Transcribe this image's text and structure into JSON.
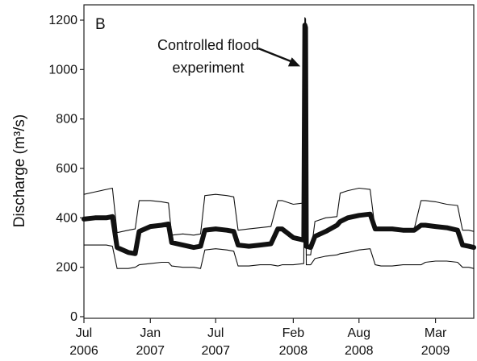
{
  "chart_data": {
    "type": "line",
    "panel_label": "B",
    "ylabel": "Discharge (m³/s)",
    "ylim": [
      0,
      1250
    ],
    "yticks": [
      0,
      200,
      400,
      600,
      800,
      1000,
      1200
    ],
    "xlim": [
      "2006-07-01",
      "2009-06-15"
    ],
    "xticks": [
      {
        "date": "2006-07-01",
        "line1": "Jul",
        "line2": "2006"
      },
      {
        "date": "2007-01-01",
        "line1": "Jan",
        "line2": "2007"
      },
      {
        "date": "2007-07-01",
        "line1": "Jul",
        "line2": "2007"
      },
      {
        "date": "2008-02-01",
        "line1": "Feb",
        "line2": "2008"
      },
      {
        "date": "2008-08-01",
        "line1": "Aug",
        "line2": "2008"
      },
      {
        "date": "2009-03-01",
        "line1": "Mar",
        "line2": "2009"
      }
    ],
    "grid": false,
    "annotation": {
      "lines": [
        "Controlled flood",
        "experiment"
      ],
      "date": "2008-03-05",
      "value": 1000
    },
    "series": [
      {
        "role": "daily maximum",
        "x": [
          "2006-07-01",
          "2006-08-01",
          "2006-09-01",
          "2006-09-18",
          "2006-10-01",
          "2006-11-01",
          "2006-11-20",
          "2006-12-01",
          "2007-01-01",
          "2007-02-01",
          "2007-02-20",
          "2007-03-01",
          "2007-04-01",
          "2007-05-01",
          "2007-05-20",
          "2007-06-01",
          "2007-07-01",
          "2007-08-01",
          "2007-08-20",
          "2007-09-01",
          "2007-10-01",
          "2007-11-01",
          "2007-12-01",
          "2007-12-20",
          "2008-01-01",
          "2008-02-01",
          "2008-03-01",
          "2008-03-04",
          "2008-03-06",
          "2008-03-08",
          "2008-03-20",
          "2008-04-01",
          "2008-05-01",
          "2008-06-01",
          "2008-06-10",
          "2008-07-01",
          "2008-08-01",
          "2008-09-01",
          "2008-09-15",
          "2008-10-01",
          "2008-11-01",
          "2008-12-01",
          "2009-01-01",
          "2009-01-20",
          "2009-02-01",
          "2009-03-01",
          "2009-04-01",
          "2009-05-01",
          "2009-05-15",
          "2009-06-01",
          "2009-06-15"
        ],
        "values": [
          495,
          505,
          515,
          520,
          340,
          350,
          355,
          470,
          470,
          465,
          460,
          330,
          335,
          330,
          335,
          490,
          495,
          490,
          485,
          350,
          355,
          360,
          365,
          470,
          470,
          455,
          460,
          1210,
          1205,
          250,
          250,
          385,
          400,
          405,
          500,
          510,
          520,
          515,
          350,
          350,
          350,
          350,
          355,
          470,
          470,
          465,
          455,
          450,
          350,
          350,
          345
        ]
      },
      {
        "role": "daily mean",
        "x": [
          "2006-07-01",
          "2006-08-01",
          "2006-09-01",
          "2006-09-18",
          "2006-10-01",
          "2006-11-01",
          "2006-11-20",
          "2006-12-01",
          "2007-01-01",
          "2007-02-01",
          "2007-02-20",
          "2007-03-01",
          "2007-04-01",
          "2007-05-01",
          "2007-05-20",
          "2007-06-01",
          "2007-07-01",
          "2007-08-01",
          "2007-08-20",
          "2007-09-01",
          "2007-10-01",
          "2007-11-01",
          "2007-12-01",
          "2007-12-20",
          "2008-01-01",
          "2008-02-01",
          "2008-03-01",
          "2008-03-04",
          "2008-03-06",
          "2008-03-08",
          "2008-03-20",
          "2008-04-01",
          "2008-05-01",
          "2008-06-01",
          "2008-06-10",
          "2008-07-01",
          "2008-08-01",
          "2008-09-01",
          "2008-09-15",
          "2008-10-01",
          "2008-11-01",
          "2008-12-01",
          "2009-01-01",
          "2009-01-20",
          "2009-02-01",
          "2009-03-01",
          "2009-04-01",
          "2009-05-01",
          "2009-05-15",
          "2009-06-01",
          "2009-06-15"
        ],
        "values": [
          395,
          400,
          400,
          405,
          280,
          260,
          255,
          345,
          365,
          370,
          375,
          300,
          290,
          280,
          285,
          350,
          355,
          350,
          345,
          290,
          285,
          290,
          295,
          355,
          355,
          320,
          310,
          1180,
          1170,
          285,
          280,
          325,
          345,
          370,
          385,
          400,
          410,
          415,
          355,
          355,
          355,
          350,
          350,
          370,
          370,
          365,
          360,
          350,
          290,
          285,
          280
        ]
      },
      {
        "role": "daily minimum",
        "x": [
          "2006-07-01",
          "2006-08-01",
          "2006-09-01",
          "2006-09-18",
          "2006-10-01",
          "2006-11-01",
          "2006-11-20",
          "2006-12-01",
          "2007-01-01",
          "2007-02-01",
          "2007-02-20",
          "2007-03-01",
          "2007-04-01",
          "2007-05-01",
          "2007-05-20",
          "2007-06-01",
          "2007-07-01",
          "2007-08-01",
          "2007-08-20",
          "2007-09-01",
          "2007-10-01",
          "2007-11-01",
          "2007-12-01",
          "2007-12-20",
          "2008-01-01",
          "2008-02-01",
          "2008-03-01",
          "2008-03-04",
          "2008-03-06",
          "2008-03-08",
          "2008-03-20",
          "2008-04-01",
          "2008-05-01",
          "2008-06-01",
          "2008-06-10",
          "2008-07-01",
          "2008-08-01",
          "2008-09-01",
          "2008-09-15",
          "2008-10-01",
          "2008-11-01",
          "2008-12-01",
          "2009-01-01",
          "2009-01-20",
          "2009-02-01",
          "2009-03-01",
          "2009-04-01",
          "2009-05-01",
          "2009-05-15",
          "2009-06-01",
          "2009-06-15"
        ],
        "values": [
          290,
          290,
          290,
          285,
          195,
          195,
          200,
          210,
          215,
          220,
          220,
          205,
          200,
          200,
          195,
          270,
          275,
          270,
          265,
          205,
          205,
          210,
          210,
          205,
          210,
          210,
          215,
          1150,
          1140,
          210,
          210,
          235,
          245,
          250,
          255,
          260,
          270,
          275,
          210,
          205,
          205,
          210,
          210,
          210,
          220,
          225,
          225,
          220,
          200,
          200,
          195
        ]
      }
    ]
  }
}
